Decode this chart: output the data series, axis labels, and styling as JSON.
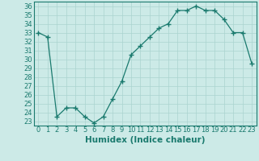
{
  "x": [
    0,
    1,
    2,
    3,
    4,
    5,
    6,
    7,
    8,
    9,
    10,
    11,
    12,
    13,
    14,
    15,
    16,
    17,
    18,
    19,
    20,
    21,
    22,
    23
  ],
  "y": [
    33.0,
    32.5,
    23.5,
    24.5,
    24.5,
    23.5,
    22.8,
    23.5,
    25.5,
    27.5,
    30.5,
    31.5,
    32.5,
    33.5,
    34.0,
    35.5,
    35.5,
    36.0,
    35.5,
    35.5,
    34.5,
    33.0,
    33.0,
    29.5
  ],
  "xlabel": "Humidex (Indice chaleur)",
  "ylim": [
    22.5,
    36.5
  ],
  "xlim": [
    -0.5,
    23.5
  ],
  "yticks": [
    23,
    24,
    25,
    26,
    27,
    28,
    29,
    30,
    31,
    32,
    33,
    34,
    35,
    36
  ],
  "xticks": [
    0,
    1,
    2,
    3,
    4,
    5,
    6,
    7,
    8,
    9,
    10,
    11,
    12,
    13,
    14,
    15,
    16,
    17,
    18,
    19,
    20,
    21,
    22,
    23
  ],
  "line_color": "#1a7a6e",
  "marker": "+",
  "marker_size": 4,
  "bg_color": "#cceae7",
  "grid_color": "#aad4d0",
  "xlabel_fontsize": 7.5,
  "tick_fontsize": 6
}
